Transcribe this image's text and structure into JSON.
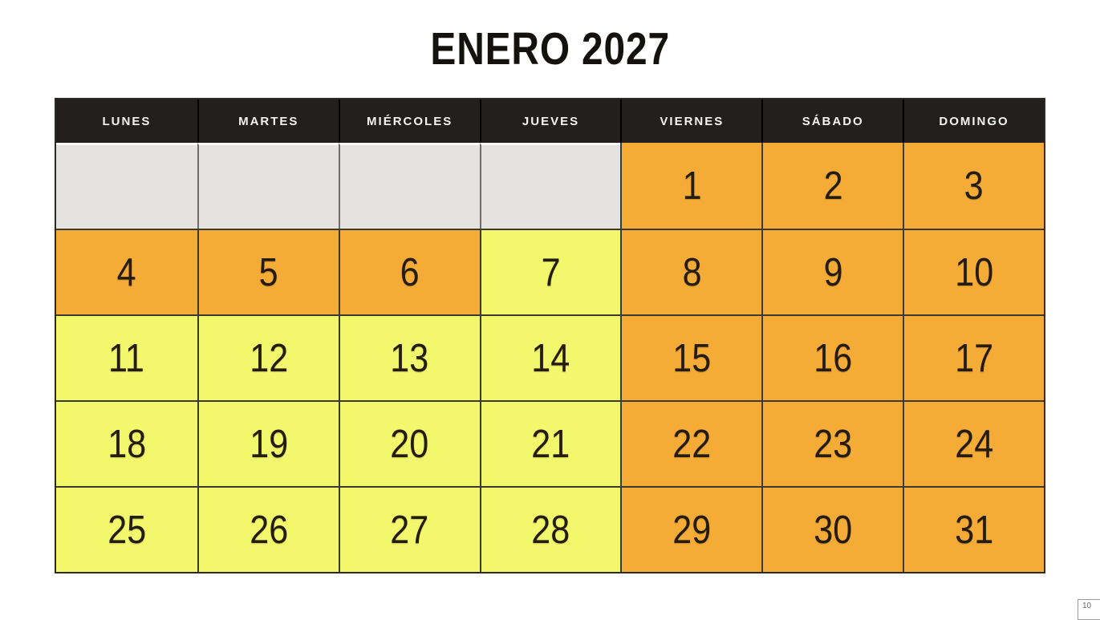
{
  "title": "ENERO 2027",
  "calendar": {
    "weekdays": [
      "LUNES",
      "MARTES",
      "MIÉRCOLES",
      "JUEVES",
      "VIERNES",
      "SÁBADO",
      "DOMINGO"
    ],
    "rows": [
      {
        "cells": [
          {
            "day": "",
            "type": "empty"
          },
          {
            "day": "",
            "type": "empty"
          },
          {
            "day": "",
            "type": "empty"
          },
          {
            "day": "",
            "type": "empty"
          },
          {
            "day": "1",
            "type": "orange"
          },
          {
            "day": "2",
            "type": "orange"
          },
          {
            "day": "3",
            "type": "orange"
          }
        ]
      },
      {
        "cells": [
          {
            "day": "4",
            "type": "orange"
          },
          {
            "day": "5",
            "type": "orange"
          },
          {
            "day": "6",
            "type": "orange"
          },
          {
            "day": "7",
            "type": "yellow"
          },
          {
            "day": "8",
            "type": "orange"
          },
          {
            "day": "9",
            "type": "orange"
          },
          {
            "day": "10",
            "type": "orange"
          }
        ]
      },
      {
        "cells": [
          {
            "day": "11",
            "type": "yellow"
          },
          {
            "day": "12",
            "type": "yellow"
          },
          {
            "day": "13",
            "type": "yellow"
          },
          {
            "day": "14",
            "type": "yellow"
          },
          {
            "day": "15",
            "type": "orange"
          },
          {
            "day": "16",
            "type": "orange"
          },
          {
            "day": "17",
            "type": "orange"
          }
        ]
      },
      {
        "cells": [
          {
            "day": "18",
            "type": "yellow"
          },
          {
            "day": "19",
            "type": "yellow"
          },
          {
            "day": "20",
            "type": "yellow"
          },
          {
            "day": "21",
            "type": "yellow"
          },
          {
            "day": "22",
            "type": "orange"
          },
          {
            "day": "23",
            "type": "orange"
          },
          {
            "day": "24",
            "type": "orange"
          }
        ]
      },
      {
        "cells": [
          {
            "day": "25",
            "type": "yellow"
          },
          {
            "day": "26",
            "type": "yellow"
          },
          {
            "day": "27",
            "type": "yellow"
          },
          {
            "day": "28",
            "type": "yellow"
          },
          {
            "day": "29",
            "type": "orange"
          },
          {
            "day": "30",
            "type": "orange"
          },
          {
            "day": "31",
            "type": "orange"
          }
        ]
      }
    ]
  },
  "colors": {
    "header_bg": "#221f1e",
    "header_text": "#f4f4f4",
    "orange_cell": "#f5ac37",
    "yellow_cell": "#f3f76c",
    "empty_cell_gray": "#e4e3e1",
    "grid_border": "#3c392f",
    "day_text": "#241c0e"
  },
  "corner_badge": {
    "text": "10"
  }
}
